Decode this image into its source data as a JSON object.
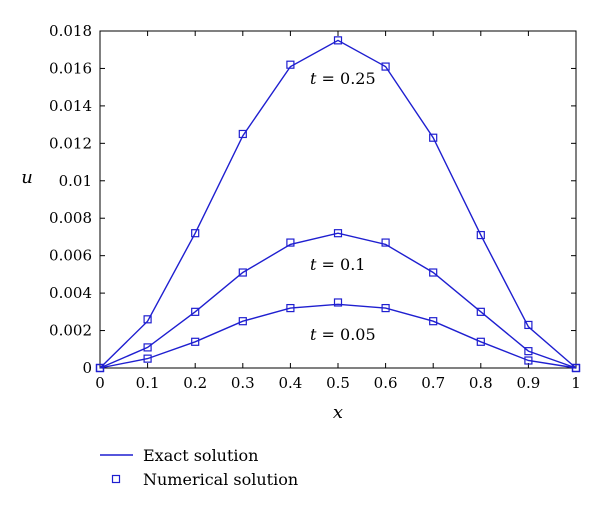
{
  "colors": {
    "series": "#1f1fd0",
    "axis": "#000000"
  },
  "chart_data": {
    "type": "line",
    "title": "",
    "xlabel": "x",
    "ylabel": "u",
    "xlim": [
      0,
      1
    ],
    "ylim": [
      0,
      0.018
    ],
    "xticks": [
      0,
      0.1,
      0.2,
      0.3,
      0.4,
      0.5,
      0.6,
      0.7,
      0.8,
      0.9,
      1
    ],
    "xtick_labels": [
      "0",
      "0.1",
      "0.2",
      "0.3",
      "0.4",
      "0.5",
      "0.6",
      "0.7",
      "0.8",
      "0.9",
      "1"
    ],
    "yticks": [
      0,
      0.002,
      0.004,
      0.006,
      0.008,
      0.01,
      0.012,
      0.014,
      0.016,
      0.018
    ],
    "ytick_labels": [
      "0",
      "0.002",
      "0.004",
      "0.006",
      "0.008",
      "0.01",
      "0.012",
      "0.014",
      "0.016",
      "0.018"
    ],
    "grid": false,
    "legend_position": "bottom-left, below plot",
    "legend": [
      {
        "label": "Exact solution",
        "marker": "line"
      },
      {
        "label": "Numerical solution",
        "marker": "square"
      }
    ],
    "x": [
      0,
      0.1,
      0.2,
      0.3,
      0.4,
      0.5,
      0.6,
      0.7,
      0.8,
      0.9,
      1
    ],
    "series": [
      {
        "annotation": {
          "var": "t",
          "text": " = 0.25"
        },
        "exact": [
          0,
          0.0025,
          0.0072,
          0.0124,
          0.0161,
          0.0175,
          0.0161,
          0.0123,
          0.0071,
          0.0022,
          0
        ],
        "numerical": [
          0,
          0.0026,
          0.0072,
          0.0125,
          0.0162,
          0.0175,
          0.0161,
          0.0123,
          0.0071,
          0.0023,
          0
        ]
      },
      {
        "annotation": {
          "var": "t",
          "text": " = 0.1"
        },
        "exact": [
          0,
          0.0011,
          0.003,
          0.0051,
          0.0066,
          0.0072,
          0.0066,
          0.0051,
          0.003,
          0.0009,
          0
        ],
        "numerical": [
          0,
          0.0011,
          0.003,
          0.0051,
          0.0067,
          0.0072,
          0.0067,
          0.0051,
          0.003,
          0.0009,
          0
        ]
      },
      {
        "annotation": {
          "var": "t",
          "text": " = 0.05"
        },
        "exact": [
          0,
          0.0005,
          0.0014,
          0.0025,
          0.0032,
          0.0034,
          0.0032,
          0.0025,
          0.0014,
          0.0004,
          0
        ],
        "numerical": [
          0,
          0.0005,
          0.0014,
          0.0025,
          0.0032,
          0.0035,
          0.0032,
          0.0025,
          0.0014,
          0.0004,
          0
        ]
      }
    ]
  }
}
